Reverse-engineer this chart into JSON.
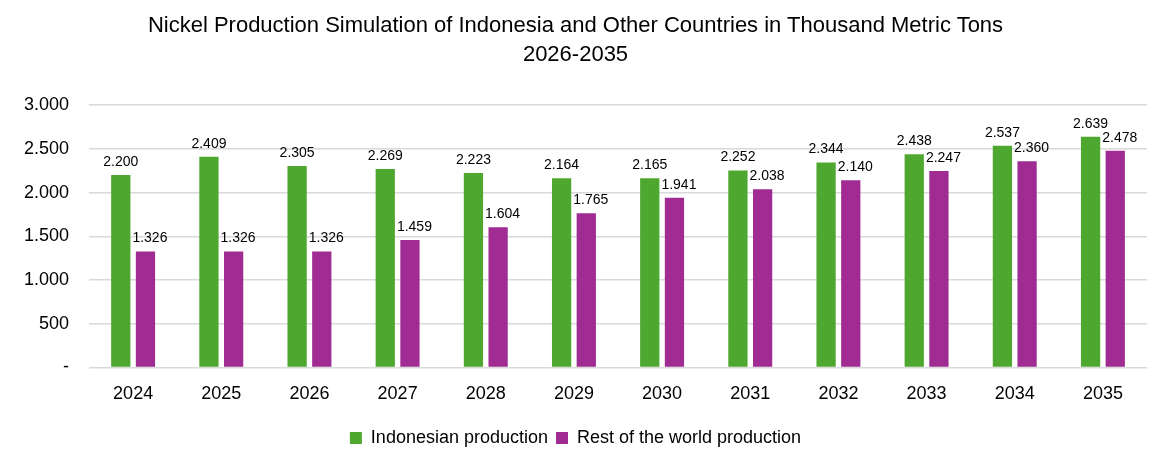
{
  "chart_data": {
    "type": "bar",
    "title": "Nickel Production Simulation of Indonesia and Other Countries in Thousand Metric Tons 2026-2035",
    "categories": [
      "2024",
      "2025",
      "2026",
      "2027",
      "2028",
      "2029",
      "2030",
      "2031",
      "2032",
      "2033",
      "2034",
      "2035"
    ],
    "series": [
      {
        "name": "Indonesian production",
        "color": "#4ea72e",
        "values": [
          2200,
          2409,
          2305,
          2269,
          2223,
          2164,
          2165,
          2252,
          2344,
          2438,
          2537,
          2639
        ],
        "value_labels": [
          "2.200",
          "2.409",
          "2.305",
          "2.269",
          "2.223",
          "2.164",
          "2.165",
          "2.252",
          "2.344",
          "2.438",
          "2.537",
          "2.639"
        ]
      },
      {
        "name": "Rest of the world production",
        "color": "#a02b93",
        "values": [
          1326,
          1326,
          1326,
          1459,
          1604,
          1765,
          1941,
          2038,
          2140,
          2247,
          2360,
          2478
        ],
        "value_labels": [
          "1.326",
          "1.326",
          "1.326",
          "1.459",
          "1.604",
          "1.765",
          "1.941",
          "2.038",
          "2.140",
          "2.247",
          "2.360",
          "2.478"
        ]
      }
    ],
    "ylim": [
      0,
      3000
    ],
    "yticks": [
      {
        "value": 0,
        "label": "-"
      },
      500,
      {
        "value": 1000,
        "label": "1.000"
      },
      {
        "value": 1500,
        "label": "1.500"
      },
      {
        "value": 2000,
        "label": "2.000"
      },
      {
        "value": 2500,
        "label": "2.500"
      },
      {
        "value": 3000,
        "label": "3.000"
      }
    ],
    "grid": "y",
    "legend": "bottom"
  }
}
